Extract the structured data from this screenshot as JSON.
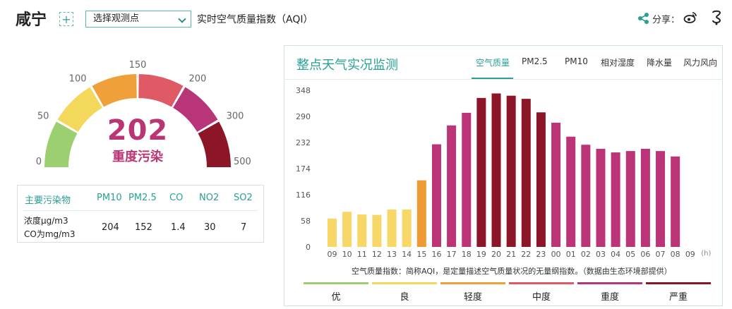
{
  "header": {
    "city": "咸宁",
    "add_symbol": "+",
    "station_select": "选择观测点",
    "subtitle": "实时空气质量指数（AQI）",
    "share_label": "分享："
  },
  "aqi": {
    "value": "202",
    "level": "重度污染",
    "gauge_ticks": [
      "0",
      "50",
      "100",
      "150",
      "200",
      "300",
      "500"
    ],
    "gauge_colors": [
      "#9ccf6f",
      "#f4d85b",
      "#f0a03a",
      "#e05a66",
      "#b8357a",
      "#8c1527"
    ]
  },
  "pollutants": {
    "header_label": "主要污染物",
    "columns": [
      "PM10",
      "PM2.5",
      "CO",
      "NO2",
      "SO2"
    ],
    "row_label_1": "浓度μg/m3",
    "row_label_2": "CO为mg/m3",
    "values": [
      "204",
      "152",
      "1.4",
      "30",
      "7"
    ]
  },
  "panel": {
    "title": "整点天气实况监测",
    "tabs": [
      "空气质量",
      "PM2.5",
      "PM10",
      "相对湿度",
      "降水量",
      "风力风向"
    ],
    "active_tab": 0,
    "note": "空气质量指数：简称AQI，是定量描述空气质量状况的无量纲指数。（数据由生态环境部提供）"
  },
  "chart_data": {
    "type": "bar",
    "categories": [
      "09",
      "10",
      "11",
      "12",
      "13",
      "14",
      "15",
      "16",
      "17",
      "18",
      "19",
      "20",
      "21",
      "22",
      "23",
      "00",
      "01",
      "02",
      "03",
      "04",
      "05",
      "06",
      "07",
      "08",
      "09"
    ],
    "values": [
      63,
      78,
      72,
      71,
      83,
      83,
      148,
      228,
      270,
      298,
      331,
      341,
      336,
      329,
      299,
      276,
      245,
      227,
      218,
      210,
      213,
      218,
      213,
      201,
      null
    ],
    "colors": [
      "#f7d768",
      "#f7d768",
      "#f7d768",
      "#f7d768",
      "#f7d768",
      "#f7d768",
      "#f09a35",
      "#bb3477",
      "#bb3477",
      "#bb3477",
      "#8c1527",
      "#8c1527",
      "#8c1527",
      "#8c1527",
      "#8c1527",
      "#bb3477",
      "#bb3477",
      "#bb3477",
      "#bb3477",
      "#bb3477",
      "#bb3477",
      "#bb3477",
      "#bb3477",
      "#bb3477",
      null
    ],
    "y_ticks": [
      "0",
      "58",
      "116",
      "174",
      "232",
      "290",
      "348"
    ],
    "ylim": [
      0,
      348
    ],
    "x_unit": "(h)",
    "grid": false
  },
  "legend": {
    "items": [
      {
        "label": "优",
        "color": "#9ccf6f"
      },
      {
        "label": "良",
        "color": "#f4d85b"
      },
      {
        "label": "轻度",
        "color": "#f0a03a"
      },
      {
        "label": "中度",
        "color": "#e05a66"
      },
      {
        "label": "重度",
        "color": "#b8357a"
      },
      {
        "label": "严重",
        "color": "#8c1527"
      }
    ]
  },
  "icons": {
    "share": "share-icon",
    "weibo": "weibo-icon",
    "other": "social-icon"
  }
}
